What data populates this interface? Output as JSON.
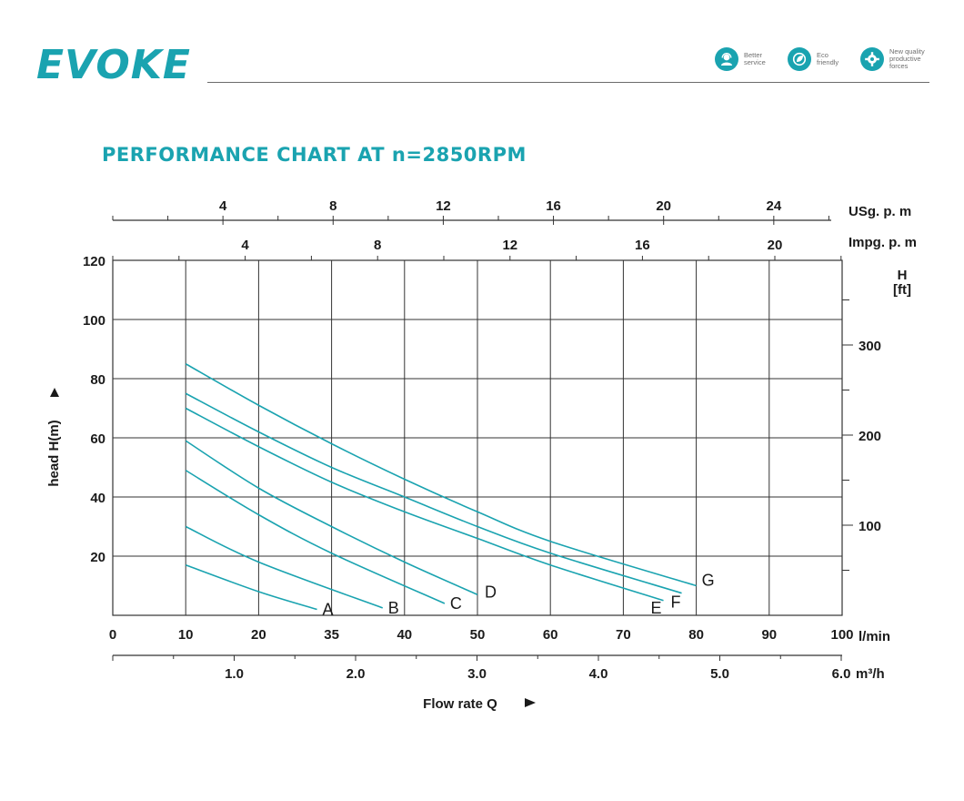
{
  "brand": {
    "name": "EVOKE",
    "accent": "#1aa3b0"
  },
  "badges": [
    {
      "icon": "support-agent-icon",
      "text": "Better\nservice"
    },
    {
      "icon": "leaf-icon",
      "text": "Eco\nfriendly"
    },
    {
      "icon": "gear-icon",
      "text": "New quality\nproductive\nforces"
    }
  ],
  "chart_data": {
    "type": "line",
    "title": "PERFORMANCE CHART AT n=2850RPM",
    "xlabel": "Flow rate Q",
    "ylabel": "head H(m)",
    "x_unit": "l/min",
    "xlim": [
      0,
      100
    ],
    "ylim": [
      0,
      120
    ],
    "x_ticks": [
      "0",
      "10",
      "20",
      "35",
      "40",
      "50",
      "60",
      "70",
      "80",
      "90",
      "100"
    ],
    "y_ticks": [
      "20",
      "40",
      "60",
      "80",
      "100",
      "120"
    ],
    "grid": true,
    "curve_color": "#1aa3b0",
    "series": [
      {
        "name": "A",
        "x": [
          10,
          20,
          28
        ],
        "y": [
          17,
          8,
          2
        ]
      },
      {
        "name": "B",
        "x": [
          10,
          20,
          37
        ],
        "y": [
          30,
          18,
          2.5
        ]
      },
      {
        "name": "C",
        "x": [
          10,
          20,
          30,
          45.5
        ],
        "y": [
          49,
          34,
          21,
          4
        ]
      },
      {
        "name": "D",
        "x": [
          10,
          20,
          30,
          40,
          50
        ],
        "y": [
          59,
          43,
          30,
          18,
          7
        ]
      },
      {
        "name": "E",
        "x": [
          10,
          20,
          30,
          40,
          50,
          60,
          75.5
        ],
        "y": [
          70,
          57,
          45,
          35,
          26,
          17,
          5
        ]
      },
      {
        "name": "F",
        "x": [
          10,
          20,
          30,
          40,
          50,
          60,
          78
        ],
        "y": [
          75,
          62,
          50,
          40,
          30,
          21,
          7.5
        ]
      },
      {
        "name": "G",
        "x": [
          10,
          20,
          30,
          40,
          50,
          60,
          80
        ],
        "y": [
          85,
          71,
          58,
          46,
          35,
          25,
          10
        ]
      }
    ],
    "top_axis_us": {
      "unit": "USg. p. m",
      "ticks": [
        4,
        8,
        12,
        16,
        20,
        24
      ]
    },
    "top_axis_imp": {
      "unit": "Impg. p. m",
      "ticks": [
        4,
        8,
        12,
        16,
        20
      ]
    },
    "bottom_axis_m3h": {
      "unit": "m³/h",
      "ticks": [
        "1.0",
        "2.0",
        "3.0",
        "4.0",
        "5.0",
        "6.0"
      ]
    },
    "right_axis_ft": {
      "label": "H",
      "unit": "[ft]",
      "ticks": [
        100,
        200,
        300
      ]
    }
  }
}
